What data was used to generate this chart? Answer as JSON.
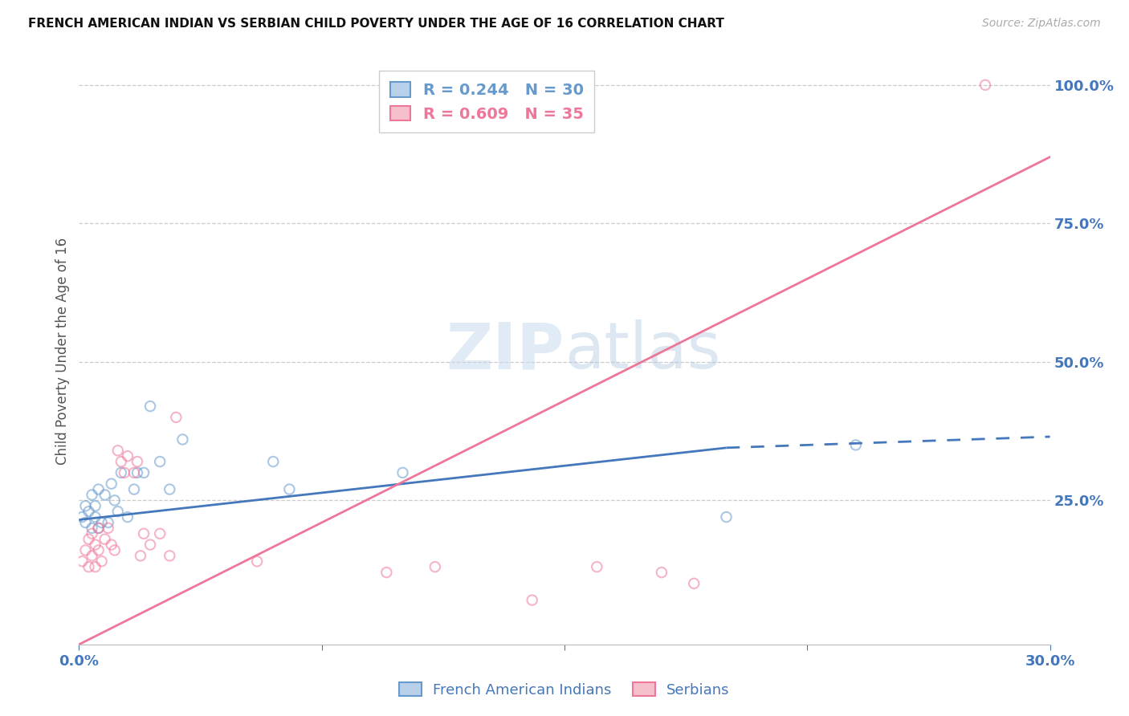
{
  "title": "FRENCH AMERICAN INDIAN VS SERBIAN CHILD POVERTY UNDER THE AGE OF 16 CORRELATION CHART",
  "source": "Source: ZipAtlas.com",
  "ylabel": "Child Poverty Under the Age of 16",
  "xlim": [
    0.0,
    0.3
  ],
  "ylim": [
    -0.01,
    1.05
  ],
  "ytick_labels": [
    "25.0%",
    "50.0%",
    "75.0%",
    "100.0%"
  ],
  "ytick_values": [
    0.25,
    0.5,
    0.75,
    1.0
  ],
  "blue_x": [
    0.001,
    0.002,
    0.002,
    0.003,
    0.004,
    0.004,
    0.005,
    0.005,
    0.006,
    0.006,
    0.007,
    0.008,
    0.009,
    0.01,
    0.011,
    0.012,
    0.013,
    0.015,
    0.017,
    0.018,
    0.02,
    0.022,
    0.025,
    0.028,
    0.032,
    0.06,
    0.065,
    0.1,
    0.2,
    0.24
  ],
  "blue_y": [
    0.22,
    0.24,
    0.21,
    0.23,
    0.26,
    0.2,
    0.22,
    0.24,
    0.2,
    0.27,
    0.21,
    0.26,
    0.21,
    0.28,
    0.25,
    0.23,
    0.3,
    0.22,
    0.27,
    0.3,
    0.3,
    0.42,
    0.32,
    0.27,
    0.36,
    0.32,
    0.27,
    0.3,
    0.22,
    0.35
  ],
  "pink_x": [
    0.001,
    0.002,
    0.003,
    0.003,
    0.004,
    0.004,
    0.005,
    0.005,
    0.006,
    0.006,
    0.007,
    0.008,
    0.009,
    0.01,
    0.011,
    0.012,
    0.013,
    0.014,
    0.015,
    0.017,
    0.018,
    0.019,
    0.02,
    0.022,
    0.025,
    0.028,
    0.03,
    0.055,
    0.095,
    0.11,
    0.14,
    0.16,
    0.18,
    0.19,
    0.28
  ],
  "pink_y": [
    0.14,
    0.16,
    0.13,
    0.18,
    0.15,
    0.19,
    0.13,
    0.17,
    0.16,
    0.2,
    0.14,
    0.18,
    0.2,
    0.17,
    0.16,
    0.34,
    0.32,
    0.3,
    0.33,
    0.3,
    0.32,
    0.15,
    0.19,
    0.17,
    0.19,
    0.15,
    0.4,
    0.14,
    0.12,
    0.13,
    0.07,
    0.13,
    0.12,
    0.1,
    1.0
  ],
  "blue_line": {
    "x0": 0.0,
    "y0": 0.215,
    "x1_solid": 0.2,
    "y1_solid": 0.345,
    "x1_dash": 0.3,
    "y1_dash": 0.365
  },
  "pink_line": {
    "x0": 0.0,
    "y0": -0.01,
    "x1": 0.3,
    "y1": 0.87
  },
  "blue_color": "#6699cc",
  "pink_color": "#ee7799",
  "blue_line_color": "#4477bb",
  "pink_line_color": "#ee7799",
  "axis_color": "#4477bb",
  "background_color": "#ffffff",
  "scatter_size": 80,
  "scatter_alpha": 0.55,
  "legend_r_blue": "R = 0.244",
  "legend_n_blue": "N = 30",
  "legend_r_pink": "R = 0.609",
  "legend_n_pink": "N = 35",
  "legend_label_blue": "French American Indians",
  "legend_label_pink": "Serbians"
}
